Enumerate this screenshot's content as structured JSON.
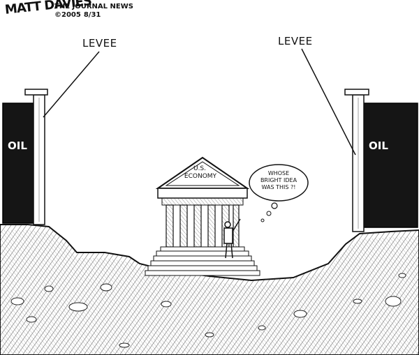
{
  "signature": "MATT DAVIES",
  "credit": {
    "publication": "THE JOURNAL NEWS",
    "copyright": "©2005",
    "date": "8/31"
  },
  "levee_left": "LEVEE",
  "levee_right": "LEVEE",
  "oil_left": "OIL",
  "oil_right": "OIL",
  "building": {
    "line1": "U.S.",
    "line2": "ECONOMY"
  },
  "speech_bubble": {
    "line1": "WHOSE",
    "line2": "BRIGHT IDEA",
    "line3": "WAS THIS ?!"
  }
}
